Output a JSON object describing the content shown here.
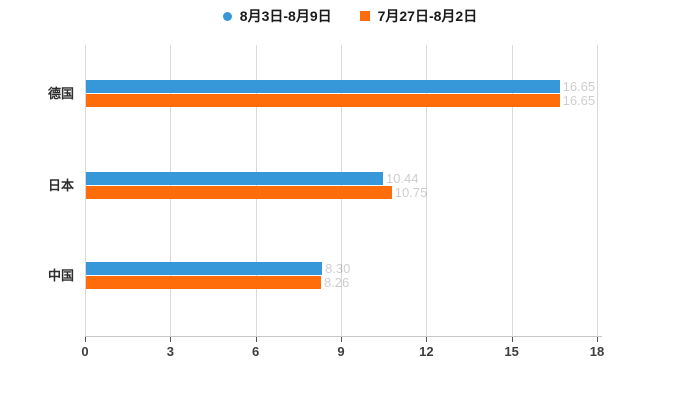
{
  "chart_data": {
    "type": "bar",
    "orientation": "horizontal",
    "title": "",
    "categories": [
      "德国",
      "日本",
      "中国"
    ],
    "series": [
      {
        "name": "8月3日-8月9日",
        "color": "#3698d9",
        "marker": "circle",
        "values": [
          16.65,
          10.44,
          8.3
        ],
        "labels": [
          "16.65",
          "10.44",
          "8.30"
        ]
      },
      {
        "name": "7月27日-8月2日",
        "color": "#ff6c0a",
        "marker": "square",
        "values": [
          16.65,
          10.75,
          8.26
        ],
        "labels": [
          "16.65",
          "10.75",
          "8.26"
        ]
      }
    ],
    "xlim": [
      0,
      18
    ],
    "x_ticks": [
      0,
      3,
      6,
      9,
      12,
      15,
      18
    ],
    "grid": true,
    "legend_position": "top",
    "palette": {
      "background": "#ffffff",
      "gridline": "#d9d9d9",
      "axis_line": "#c9c9c9",
      "tick_mark": "#555555",
      "tick_label": "#3d3d3d",
      "category_label": "#2e2e2e",
      "data_label": "rgba(0,0,0,0.20)"
    }
  }
}
